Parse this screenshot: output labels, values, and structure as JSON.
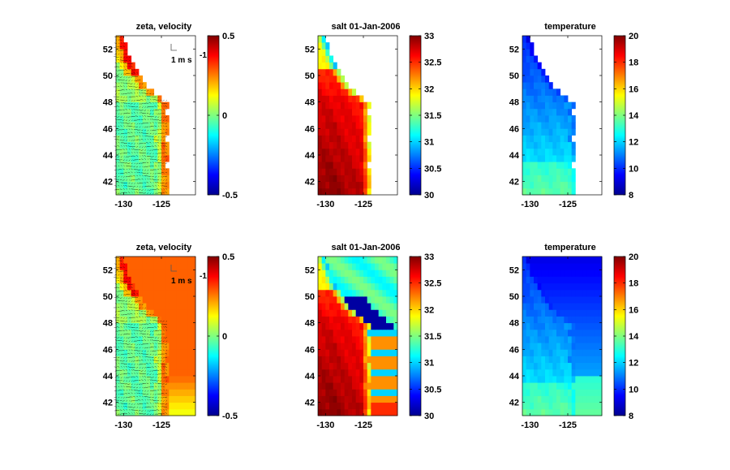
{
  "figure": {
    "rows": 2,
    "cols": 3,
    "colormap": "jet"
  },
  "chart_data": [
    {
      "type": "heatmap",
      "title": "zeta, velocity",
      "field": "zeta",
      "overlay": "velocity-quiver",
      "reference_label": "1 m s",
      "reference_sup": "-1",
      "xlim": [
        -131,
        -120.5
      ],
      "ylim": [
        41,
        53
      ],
      "xticks": [
        -130,
        -125
      ],
      "yticks": [
        42,
        44,
        46,
        48,
        50,
        52
      ],
      "clim": [
        -0.5,
        0.5
      ],
      "cticks": [
        0.5,
        0,
        -0.5
      ],
      "cticklabels": [
        "0.5",
        "0",
        "-0.5"
      ],
      "land_masked": true
    },
    {
      "type": "heatmap",
      "title": "salt 01-Jan-2006",
      "field": "salt",
      "xlim": [
        -131,
        -120.5
      ],
      "ylim": [
        41,
        53
      ],
      "xticks": [
        -130,
        -125
      ],
      "yticks": [
        42,
        44,
        46,
        48,
        50,
        52
      ],
      "clim": [
        30,
        33
      ],
      "cticks": [
        33,
        32.5,
        32,
        31.5,
        31,
        30.5,
        30
      ],
      "cticklabels": [
        "33",
        "32.5",
        "32",
        "31.5",
        "31",
        "30.5",
        "30"
      ],
      "land_masked": true
    },
    {
      "type": "heatmap",
      "title": "temperature",
      "field": "temperature",
      "xlim": [
        -131,
        -120.5
      ],
      "ylim": [
        41,
        53
      ],
      "xticks": [
        -130,
        -125
      ],
      "yticks": [
        42,
        44,
        46,
        48,
        50,
        52
      ],
      "clim": [
        8,
        20
      ],
      "cticks": [
        20,
        18,
        16,
        14,
        12,
        10,
        8
      ],
      "cticklabels": [
        "20",
        "18",
        "16",
        "14",
        "12",
        "10",
        "8"
      ],
      "land_masked": true
    },
    {
      "type": "heatmap",
      "title": "zeta, velocity",
      "field": "zeta",
      "overlay": "velocity-quiver",
      "reference_label": "1 m s",
      "reference_sup": "-1",
      "xlim": [
        -131,
        -120.5
      ],
      "ylim": [
        41,
        53
      ],
      "xticks": [
        -130,
        -125
      ],
      "yticks": [
        42,
        44,
        46,
        48,
        50,
        52
      ],
      "clim": [
        -0.5,
        0.5
      ],
      "cticks": [
        0.5,
        0,
        -0.5
      ],
      "cticklabels": [
        "0.5",
        "0",
        "-0.5"
      ],
      "land_masked": false
    },
    {
      "type": "heatmap",
      "title": "salt 01-Jan-2006",
      "field": "salt",
      "xlim": [
        -131,
        -120.5
      ],
      "ylim": [
        41,
        53
      ],
      "xticks": [
        -130,
        -125
      ],
      "yticks": [
        42,
        44,
        46,
        48,
        50,
        52
      ],
      "clim": [
        30,
        33
      ],
      "cticks": [
        33,
        32.5,
        32,
        31.5,
        31,
        30.5,
        30
      ],
      "cticklabels": [
        "33",
        "32.5",
        "32",
        "31.5",
        "31",
        "30.5",
        "30"
      ],
      "land_masked": false
    },
    {
      "type": "heatmap",
      "title": "temperature",
      "field": "temperature",
      "xlim": [
        -131,
        -120.5
      ],
      "ylim": [
        41,
        53
      ],
      "xticks": [
        -130,
        -125
      ],
      "yticks": [
        42,
        44,
        46,
        48,
        50,
        52
      ],
      "clim": [
        8,
        20
      ],
      "cticks": [
        20,
        18,
        16,
        14,
        12,
        10,
        8
      ],
      "cticklabels": [
        "20",
        "18",
        "16",
        "14",
        "12",
        "10",
        "8"
      ],
      "land_masked": false
    }
  ]
}
